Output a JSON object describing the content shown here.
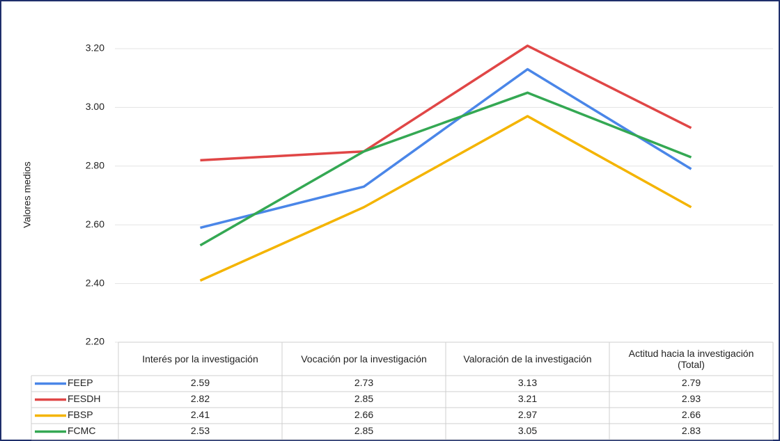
{
  "chart_data": {
    "type": "line",
    "y_label": "Valores medios",
    "categories": [
      "Interés por la investigación",
      "Vocación por la investigación",
      "Valoración de la investigación",
      "Actitud hacia la investigación (Total)"
    ],
    "series": [
      {
        "name": "FEEP",
        "color": "#4a86e8",
        "values": [
          2.59,
          2.73,
          3.13,
          2.79
        ]
      },
      {
        "name": "FESDH",
        "color": "#e04646",
        "values": [
          2.82,
          2.85,
          3.21,
          2.93
        ]
      },
      {
        "name": "FBSP",
        "color": "#f4b400",
        "values": [
          2.41,
          2.66,
          2.97,
          2.66
        ]
      },
      {
        "name": "FCMC",
        "color": "#34a853",
        "values": [
          2.53,
          2.85,
          3.05,
          2.83
        ]
      }
    ],
    "ylim": [
      2.2,
      3.2
    ],
    "yticks": [
      {
        "value": 2.2,
        "label": "2.20"
      },
      {
        "value": 2.4,
        "label": "2.40"
      },
      {
        "value": 2.6,
        "label": "2.60"
      },
      {
        "value": 2.8,
        "label": "2.80"
      },
      {
        "value": 3.0,
        "label": "3.00"
      },
      {
        "value": 3.2,
        "label": "3.20"
      }
    ],
    "grid": true
  }
}
